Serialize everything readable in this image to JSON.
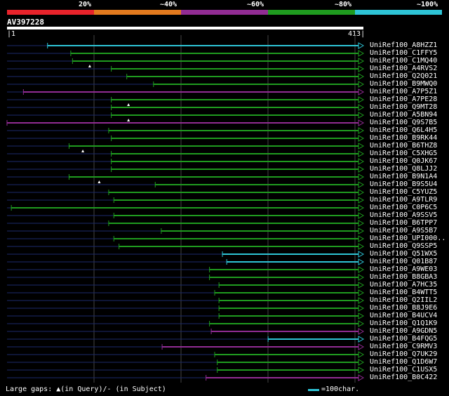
{
  "legend": {
    "ranges": [
      {
        "label": "20%",
        "color": "#e8232b"
      },
      {
        "label": "~40%",
        "color": "#e27a1e"
      },
      {
        "label": "~60%",
        "color": "#912c93"
      },
      {
        "label": "~80%",
        "color": "#1f9b1f"
      },
      {
        "label": "~100%",
        "color": "#2ec4d6"
      }
    ]
  },
  "query": {
    "name": "AV397228",
    "start": "1",
    "end": "413"
  },
  "footer": {
    "gaps_note": "Large gaps: ▲(in Query)/- (in Subject)",
    "scale_note": "=100char."
  },
  "hits": [
    {
      "label": "UniRef100_A8HZZ1",
      "start": 48,
      "color": "cyan"
    },
    {
      "label": "UniRef100_C1FFY5",
      "start": 75,
      "color": "green"
    },
    {
      "label": "UniRef100_C1MQ40",
      "start": 77,
      "color": "green",
      "tri": 97
    },
    {
      "label": "UniRef100_A4RVS2",
      "start": 122,
      "color": "green"
    },
    {
      "label": "UniRef100_Q2Q021",
      "start": 140,
      "color": "green"
    },
    {
      "label": "UniRef100_B9MWQ0",
      "start": 171,
      "color": "green"
    },
    {
      "label": "UniRef100_A7P5Z1",
      "start": 20,
      "color": "purple"
    },
    {
      "label": "UniRef100_A7PE28",
      "start": 122,
      "color": "green",
      "tri": 142
    },
    {
      "label": "UniRef100_Q9MT28",
      "start": 122,
      "color": "green"
    },
    {
      "label": "UniRef100_A5BN94",
      "start": 122,
      "color": "green",
      "tri": 142
    },
    {
      "label": "UniRef100_Q9S7B5",
      "start": 1,
      "color": "purple"
    },
    {
      "label": "UniRef100_Q6L4H5",
      "start": 119,
      "color": "green"
    },
    {
      "label": "UniRef100_B9RK44",
      "start": 122,
      "color": "green"
    },
    {
      "label": "UniRef100_B6THZ8",
      "start": 73,
      "color": "green",
      "tri": 89
    },
    {
      "label": "UniRef100_C5XHG5",
      "start": 122,
      "color": "green"
    },
    {
      "label": "UniRef100_Q0JK67",
      "start": 122,
      "color": "green"
    },
    {
      "label": "UniRef100_Q8LJJ2",
      "start": 122,
      "color": "green"
    },
    {
      "label": "UniRef100_B9N1A4",
      "start": 73,
      "color": "green",
      "tri": 108
    },
    {
      "label": "UniRef100_B9S5U4",
      "start": 173,
      "color": "green"
    },
    {
      "label": "UniRef100_C5YUZ5",
      "start": 119,
      "color": "green"
    },
    {
      "label": "UniRef100_A9TLR9",
      "start": 125,
      "color": "green"
    },
    {
      "label": "UniRef100_C0P6C5",
      "start": 6,
      "color": "green"
    },
    {
      "label": "UniRef100_A9SSV5",
      "start": 125,
      "color": "green"
    },
    {
      "label": "UniRef100_B6TPP7",
      "start": 119,
      "color": "green"
    },
    {
      "label": "UniRef100_A9S5B7",
      "start": 180,
      "color": "green"
    },
    {
      "label": "UniRef100_UPI000..",
      "start": 125,
      "color": "green"
    },
    {
      "label": "UniRef100_Q9SSP5",
      "start": 131,
      "color": "green"
    },
    {
      "label": "UniRef100_Q51WX5",
      "start": 251,
      "color": "cyan"
    },
    {
      "label": "UniRef100_Q01B87",
      "start": 256,
      "color": "cyan"
    },
    {
      "label": "UniRef100_A9WE03",
      "start": 236,
      "color": "green"
    },
    {
      "label": "UniRef100_B8GBA3",
      "start": 236,
      "color": "green"
    },
    {
      "label": "UniRef100_A7HC35",
      "start": 247,
      "color": "green"
    },
    {
      "label": "UniRef100_B4WTT5",
      "start": 242,
      "color": "green"
    },
    {
      "label": "UniRef100_Q2IIL2",
      "start": 247,
      "color": "green"
    },
    {
      "label": "UniRef100_B8J9E6",
      "start": 247,
      "color": "green"
    },
    {
      "label": "UniRef100_B4UCV4",
      "start": 247,
      "color": "green"
    },
    {
      "label": "UniRef100_Q1Q1K9",
      "start": 236,
      "color": "green"
    },
    {
      "label": "UniRef100_A9GDN5",
      "start": 238,
      "color": "purple"
    },
    {
      "label": "UniRef100_B4FQG5",
      "start": 304,
      "color": "cyan"
    },
    {
      "label": "UniRef100_C9RMV3",
      "start": 181,
      "color": "purple"
    },
    {
      "label": "UniRef100_Q7UK29",
      "start": 242,
      "color": "green"
    },
    {
      "label": "UniRef100_Q1D6W7",
      "start": 245,
      "color": "green"
    },
    {
      "label": "UniRef100_C1USX5",
      "start": 245,
      "color": "green"
    },
    {
      "label": "UniRef100_B0C422",
      "start": 232,
      "color": "purple"
    }
  ]
}
